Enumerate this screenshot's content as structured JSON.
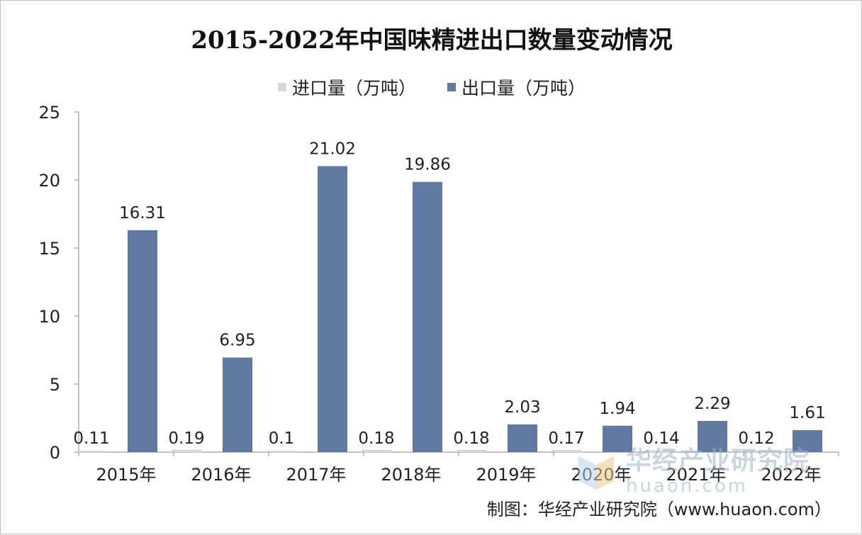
{
  "chart_data": {
    "type": "bar",
    "title": "2015-2022年中国味精进出口数量变动情况",
    "categories": [
      "2015年",
      "2016年",
      "2017年",
      "2018年",
      "2019年",
      "2020年",
      "2021年",
      "2022年"
    ],
    "series": [
      {
        "name": "进口量（万吨）",
        "values": [
          0.11,
          0.19,
          0.1,
          0.18,
          0.18,
          0.17,
          0.14,
          0.12
        ],
        "labels": [
          "0.11",
          "0.19",
          "0.1",
          "0.18",
          "0.18",
          "0.17",
          "0.14",
          "0.12"
        ],
        "color": "#d9d9d9"
      },
      {
        "name": "出口量（万吨）",
        "values": [
          16.31,
          6.95,
          21.02,
          19.86,
          2.03,
          1.94,
          2.29,
          1.61
        ],
        "labels": [
          "16.31",
          "6.95",
          "21.02",
          "19.86",
          "2.03",
          "1.94",
          "2.29",
          "1.61"
        ],
        "color": "#6178a0"
      }
    ],
    "ylim": [
      0,
      25
    ],
    "yticks": [
      "0",
      "5",
      "10",
      "15",
      "20",
      "25"
    ],
    "grid": false,
    "legend_position": "top"
  },
  "source": "制图：华经产业研究院（www.huaon.com）",
  "watermark": {
    "name_cn": "华经产业研究院",
    "url": "huaon.com"
  }
}
